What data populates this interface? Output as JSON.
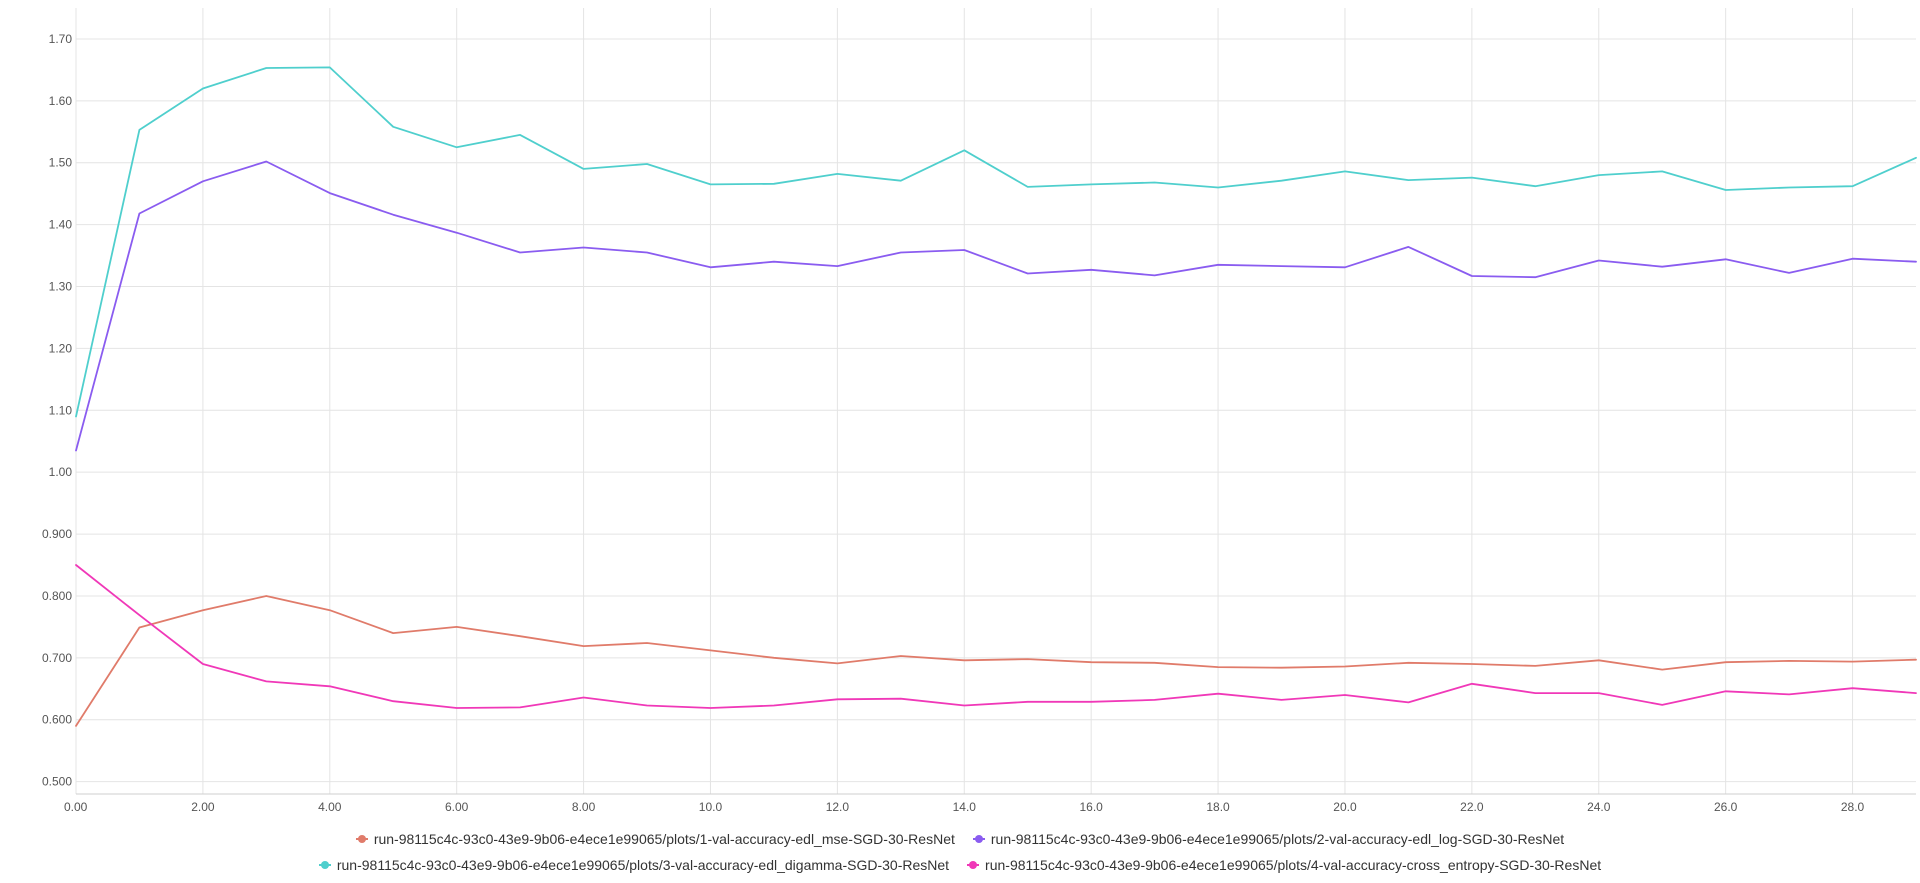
{
  "chart_data": {
    "type": "line",
    "x_ticks": [
      "0.00",
      "2.00",
      "4.00",
      "6.00",
      "8.00",
      "10.0",
      "12.0",
      "14.0",
      "16.0",
      "18.0",
      "20.0",
      "22.0",
      "24.0",
      "26.0",
      "28.0"
    ],
    "y_ticks": [
      "0.500",
      "0.600",
      "0.700",
      "0.800",
      "0.900",
      "1.00",
      "1.10",
      "1.20",
      "1.30",
      "1.40",
      "1.50",
      "1.60",
      "1.70"
    ],
    "xlim": [
      0,
      29
    ],
    "ylim": [
      0.48,
      1.75
    ],
    "grid": true,
    "legend_placement": "bottom-center",
    "x": [
      0,
      1,
      2,
      3,
      4,
      5,
      6,
      7,
      8,
      9,
      10,
      11,
      12,
      13,
      14,
      15,
      16,
      17,
      18,
      19,
      20,
      21,
      22,
      23,
      24,
      25,
      26,
      27,
      28,
      29
    ],
    "series": [
      {
        "name": "run-98115c4c-93c0-43e9-9b06-e4ece1e99065/plots/1-val-accuracy-edl_mse-SGD-30-ResNet",
        "color": "#e07b6a",
        "values": [
          0.59,
          0.749,
          0.777,
          0.8,
          0.777,
          0.74,
          0.75,
          0.735,
          0.719,
          0.724,
          0.712,
          0.7,
          0.691,
          0.703,
          0.696,
          0.698,
          0.693,
          0.692,
          0.685,
          0.684,
          0.686,
          0.692,
          0.69,
          0.687,
          0.696,
          0.681,
          0.693,
          0.695,
          0.694,
          0.697
        ]
      },
      {
        "name": "run-98115c4c-93c0-43e9-9b06-e4ece1e99065/plots/2-val-accuracy-edl_log-SGD-30-ResNet",
        "color": "#8a5cf0",
        "values": [
          1.035,
          1.418,
          1.47,
          1.502,
          1.451,
          1.416,
          1.387,
          1.355,
          1.363,
          1.355,
          1.331,
          1.34,
          1.333,
          1.355,
          1.359,
          1.321,
          1.327,
          1.318,
          1.335,
          1.333,
          1.331,
          1.364,
          1.317,
          1.315,
          1.342,
          1.332,
          1.344,
          1.322,
          1.345,
          1.34
        ]
      },
      {
        "name": "run-98115c4c-93c0-43e9-9b06-e4ece1e99065/plots/3-val-accuracy-edl_digamma-SGD-30-ResNet",
        "color": "#4fcfcd",
        "values": [
          1.09,
          1.553,
          1.62,
          1.653,
          1.654,
          1.558,
          1.525,
          1.545,
          1.49,
          1.498,
          1.465,
          1.466,
          1.482,
          1.471,
          1.52,
          1.461,
          1.465,
          1.468,
          1.46,
          1.471,
          1.486,
          1.472,
          1.476,
          1.462,
          1.48,
          1.486,
          1.456,
          1.46,
          1.462,
          1.508
        ]
      },
      {
        "name": "run-98115c4c-93c0-43e9-9b06-e4ece1e99065/plots/4-val-accuracy-cross_entropy-SGD-30-ResNet",
        "color": "#f038b8",
        "values": [
          0.85,
          0.769,
          0.69,
          0.662,
          0.654,
          0.63,
          0.619,
          0.62,
          0.636,
          0.623,
          0.619,
          0.623,
          0.633,
          0.634,
          0.623,
          0.629,
          0.629,
          0.632,
          0.642,
          0.632,
          0.64,
          0.628,
          0.658,
          0.643,
          0.643,
          0.624,
          0.646,
          0.641,
          0.651,
          0.643
        ]
      }
    ]
  }
}
